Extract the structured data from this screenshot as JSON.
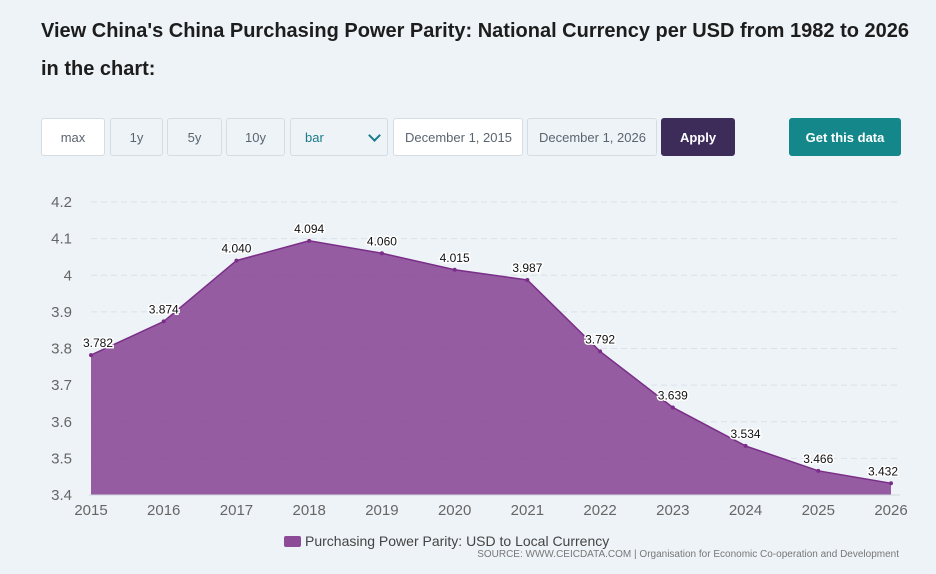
{
  "title": "View China's China Purchasing Power Parity: National Currency per USD from 1982 to 2026 in the chart:",
  "controls": {
    "range_buttons": [
      "max",
      "1y",
      "5y",
      "10y"
    ],
    "chart_type_selected": "bar",
    "start_date": "December 1, 2015",
    "end_date": "December 1, 2026",
    "apply_label": "Apply",
    "get_data_label": "Get this data"
  },
  "colors": {
    "series": "#8b4b97",
    "series_line": "#7a2e88",
    "apply_bg": "#3d2c5a",
    "get_data_bg": "#14878a"
  },
  "legend": {
    "label": "Purchasing Power Parity: USD to Local Currency"
  },
  "source": "SOURCE: WWW.CEICDATA.COM | Organisation for Economic Co-operation and Development",
  "chart_data": {
    "type": "area",
    "title": "",
    "xlabel": "",
    "ylabel": "",
    "categories": [
      "2015",
      "2016",
      "2017",
      "2018",
      "2019",
      "2020",
      "2021",
      "2022",
      "2023",
      "2024",
      "2025",
      "2026"
    ],
    "values": [
      3.782,
      3.874,
      4.04,
      4.094,
      4.06,
      4.015,
      3.987,
      3.792,
      3.639,
      3.534,
      3.466,
      3.432
    ],
    "value_labels": [
      "3.782",
      "3.874",
      "4.040",
      "4.094",
      "4.060",
      "4.015",
      "3.987",
      "3.792",
      "3.639",
      "3.534",
      "3.466",
      "3.432"
    ],
    "ylim": [
      3.4,
      4.2
    ],
    "yticks": [
      "3.4",
      "3.5",
      "3.6",
      "3.7",
      "3.8",
      "3.9",
      "4",
      "4.1",
      "4.2"
    ],
    "ytick_values": [
      3.4,
      3.5,
      3.6,
      3.7,
      3.8,
      3.9,
      4.0,
      4.1,
      4.2
    ],
    "series_name": "Purchasing Power Parity: USD to Local Currency",
    "grid": true,
    "legend_position": "bottom-center"
  }
}
